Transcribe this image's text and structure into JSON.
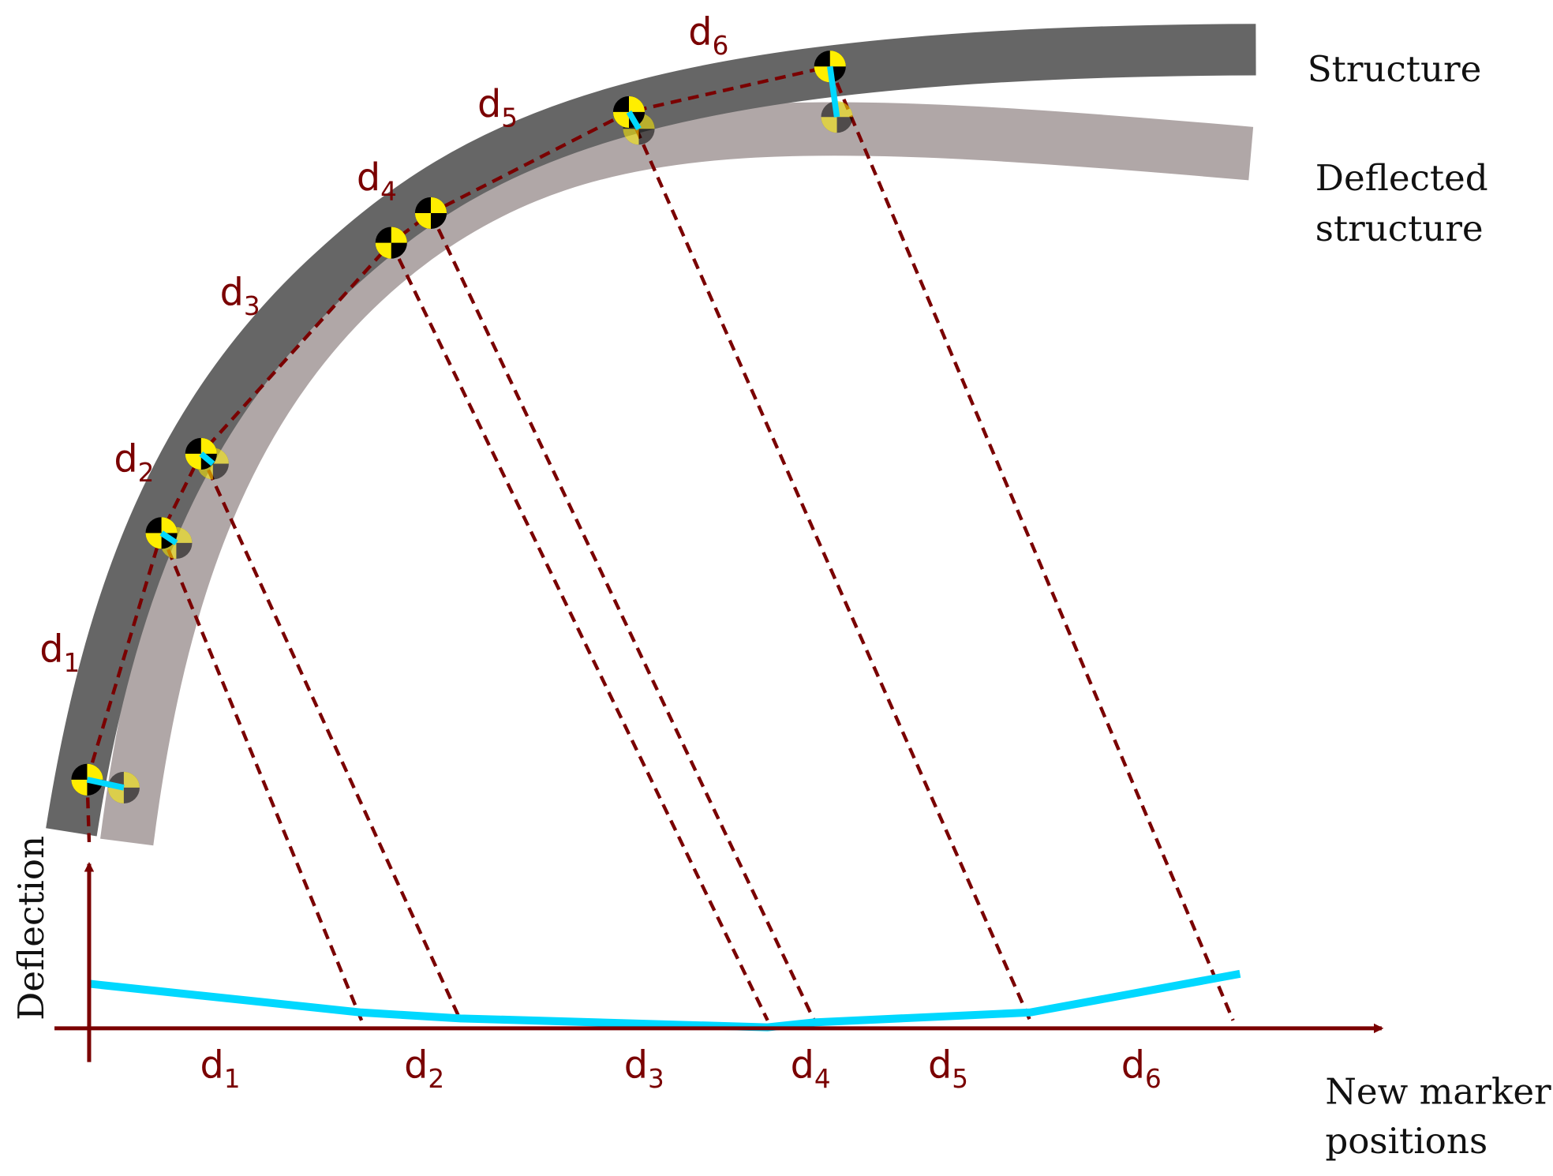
{
  "legend": {
    "structure": "Structure",
    "deflected": [
      "Deflected",
      "structure"
    ]
  },
  "arc_labels": [
    {
      "base": "d",
      "sub": "1"
    },
    {
      "base": "d",
      "sub": "2"
    },
    {
      "base": "d",
      "sub": "3"
    },
    {
      "base": "d",
      "sub": "4"
    },
    {
      "base": "d",
      "sub": "5"
    },
    {
      "base": "d",
      "sub": "6"
    }
  ],
  "axis": {
    "y_label": "Deflection",
    "x_label": [
      "New marker",
      "positions"
    ],
    "segment_labels": [
      {
        "base": "d",
        "sub": "1"
      },
      {
        "base": "d",
        "sub": "2"
      },
      {
        "base": "d",
        "sub": "3"
      },
      {
        "base": "d",
        "sub": "4"
      },
      {
        "base": "d",
        "sub": "5"
      },
      {
        "base": "d",
        "sub": "6"
      }
    ]
  }
}
